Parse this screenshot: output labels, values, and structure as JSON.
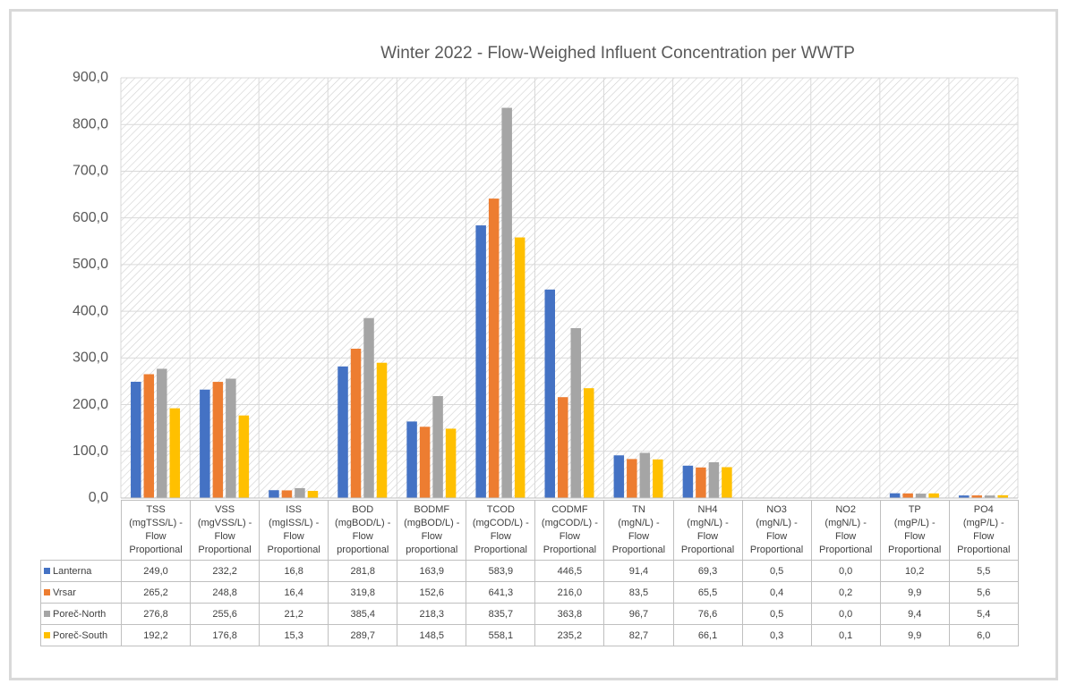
{
  "chart_data": {
    "type": "bar",
    "title": "Winter 2022 - Flow-Weighed Influent Concentration per WWTP",
    "categories": [
      "TSS\n(mgTSS/L) -\nFlow\nProportional",
      "VSS\n(mgVSS/L) -\nFlow\nProportional",
      "ISS\n(mgISS/L) -\nFlow\nProportional",
      "BOD\n(mgBOD/L) -\nFlow\nproportional",
      "BODMF\n(mgBOD/L) -\nFlow\nproportional",
      "TCOD\n(mgCOD/L) -\nFlow\nProportional",
      "CODMF\n(mgCOD/L) -\nFlow\nProportional",
      "TN\n(mgN/L) -\nFlow\nProportional",
      "NH4\n(mgN/L) -\nFlow\nProportional",
      "NO3\n(mgN/L) -\nFlow\nProportional",
      "NO2\n(mgN/L) -\nFlow\nProportional",
      "TP\n(mgP/L) -\nFlow\nProportional",
      "PO4\n(mgP/L) -\nFlow\nProportional"
    ],
    "series": [
      {
        "name": "Lanterna",
        "color": "#4472c4",
        "values": [
          249.0,
          232.2,
          16.8,
          281.8,
          163.9,
          583.9,
          446.5,
          91.4,
          69.3,
          0.5,
          0.0,
          10.2,
          5.5
        ],
        "value_labels": [
          "249,0",
          "232,2",
          "16,8",
          "281,8",
          "163,9",
          "583,9",
          "446,5",
          "91,4",
          "69,3",
          "0,5",
          "0,0",
          "10,2",
          "5,5"
        ]
      },
      {
        "name": "Vrsar",
        "color": "#ed7d31",
        "values": [
          265.2,
          248.8,
          16.4,
          319.8,
          152.6,
          641.3,
          216.0,
          83.5,
          65.5,
          0.4,
          0.2,
          9.9,
          5.6
        ],
        "value_labels": [
          "265,2",
          "248,8",
          "16,4",
          "319,8",
          "152,6",
          "641,3",
          "216,0",
          "83,5",
          "65,5",
          "0,4",
          "0,2",
          "9,9",
          "5,6"
        ]
      },
      {
        "name": "Poreč-North",
        "color": "#a5a5a5",
        "values": [
          276.8,
          255.6,
          21.2,
          385.4,
          218.3,
          835.7,
          363.8,
          96.7,
          76.6,
          0.5,
          0.0,
          9.4,
          5.4
        ],
        "value_labels": [
          "276,8",
          "255,6",
          "21,2",
          "385,4",
          "218,3",
          "835,7",
          "363,8",
          "96,7",
          "76,6",
          "0,5",
          "0,0",
          "9,4",
          "5,4"
        ]
      },
      {
        "name": "Poreč-South",
        "color": "#ffc000",
        "values": [
          192.2,
          176.8,
          15.3,
          289.7,
          148.5,
          558.1,
          235.2,
          82.7,
          66.1,
          0.3,
          0.1,
          9.9,
          6.0
        ],
        "value_labels": [
          "192,2",
          "176,8",
          "15,3",
          "289,7",
          "148,5",
          "558,1",
          "235,2",
          "82,7",
          "66,1",
          "0,3",
          "0,1",
          "9,9",
          "6,0"
        ]
      }
    ],
    "ylim": [
      0,
      900
    ],
    "yticks": [
      {
        "value": 0,
        "label": "0,0"
      },
      {
        "value": 100,
        "label": "100,0"
      },
      {
        "value": 200,
        "label": "200,0"
      },
      {
        "value": 300,
        "label": "300,0"
      },
      {
        "value": 400,
        "label": "400,0"
      },
      {
        "value": 500,
        "label": "500,0"
      },
      {
        "value": 600,
        "label": "600,0"
      },
      {
        "value": 700,
        "label": "700,0"
      },
      {
        "value": 800,
        "label": "800,0"
      },
      {
        "value": 900,
        "label": "900,0"
      }
    ],
    "grid": true
  }
}
